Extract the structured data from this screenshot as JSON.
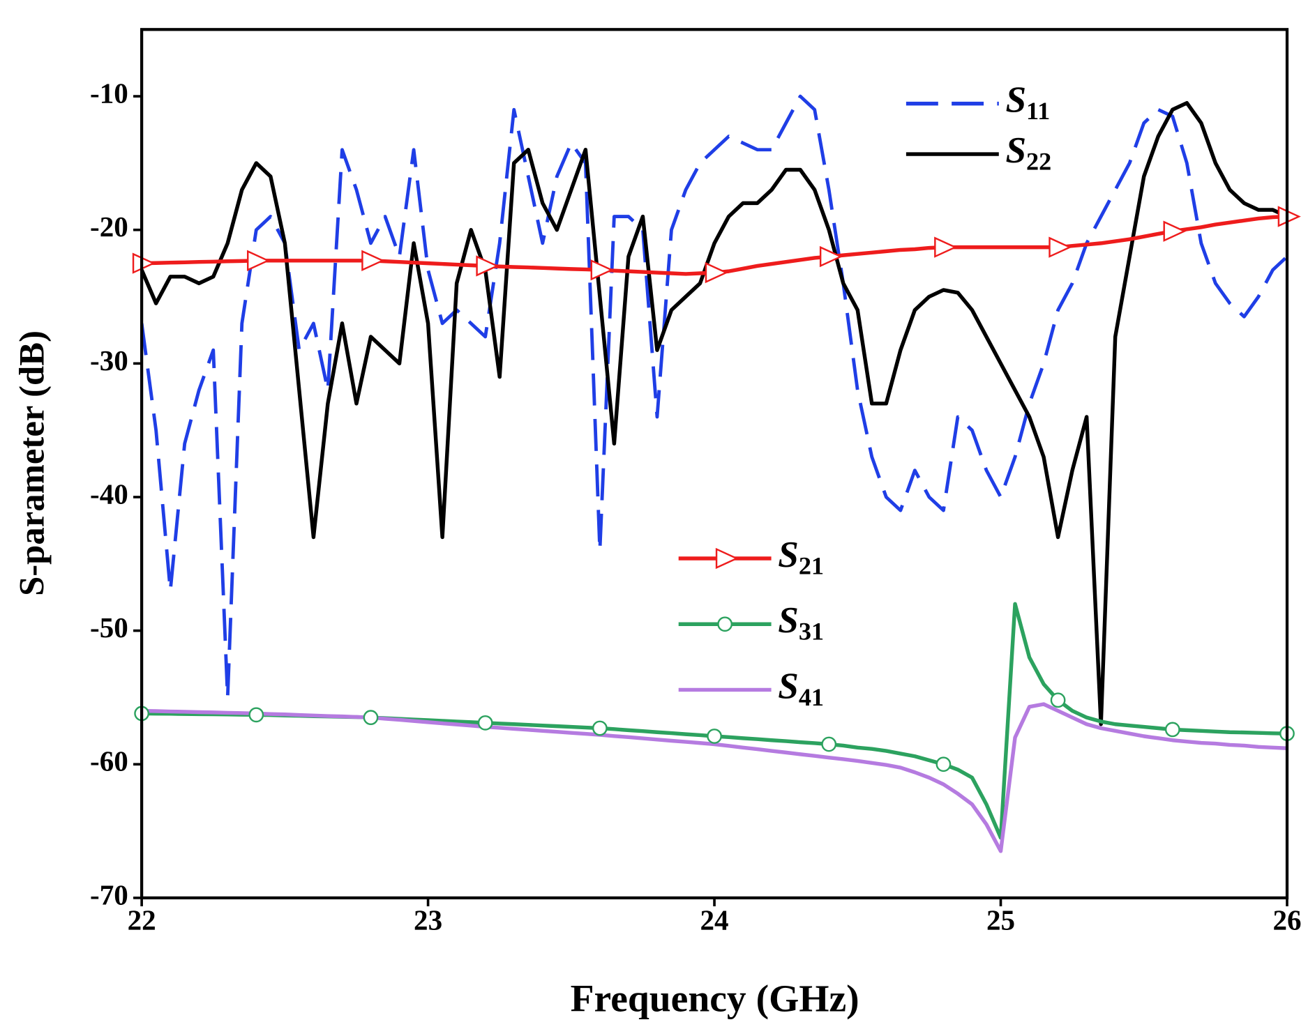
{
  "chart_data": {
    "type": "line",
    "xlabel": "Frequency (GHz)",
    "ylabel": "S-parameter (dB)",
    "xlim": [
      22,
      26
    ],
    "xticks": [
      22,
      23,
      24,
      25,
      26
    ],
    "ylim": [
      -70,
      -5
    ],
    "yticks": [
      -70,
      -60,
      -50,
      -40,
      -30,
      -20,
      -10
    ],
    "x": [
      22,
      22.05,
      22.1,
      22.15,
      22.2,
      22.25,
      22.3,
      22.35,
      22.4,
      22.45,
      22.5,
      22.55,
      22.6,
      22.65,
      22.7,
      22.75,
      22.8,
      22.85,
      22.9,
      22.95,
      23,
      23.05,
      23.1,
      23.15,
      23.2,
      23.25,
      23.3,
      23.35,
      23.4,
      23.45,
      23.5,
      23.55,
      23.6,
      23.65,
      23.7,
      23.75,
      23.8,
      23.85,
      23.9,
      23.95,
      24,
      24.05,
      24.1,
      24.15,
      24.2,
      24.25,
      24.3,
      24.35,
      24.4,
      24.45,
      24.5,
      24.55,
      24.6,
      24.65,
      24.7,
      24.75,
      24.8,
      24.85,
      24.9,
      24.95,
      25,
      25.05,
      25.1,
      25.15,
      25.2,
      25.25,
      25.3,
      25.35,
      25.4,
      25.45,
      25.5,
      25.55,
      25.6,
      25.65,
      25.7,
      25.75,
      25.8,
      25.85,
      25.9,
      25.95,
      26
    ],
    "series": [
      {
        "name": "S11",
        "color": "#1f3ee6",
        "linestyle": "dashed",
        "values": [
          -27,
          -35,
          -47,
          -36,
          -32,
          -29,
          -55,
          -27,
          -20,
          -19,
          -21,
          -29,
          -27,
          -32,
          -14,
          -17,
          -21,
          -19,
          -22,
          -14,
          -23,
          -27,
          -26,
          -27,
          -28,
          -21,
          -11,
          -16,
          -21,
          -16,
          -13.5,
          -15,
          -44,
          -19,
          -19,
          -20,
          -34,
          -20,
          -17,
          -15,
          -14,
          -13,
          -13.5,
          -14,
          -14,
          -12,
          -10,
          -11,
          -17,
          -24,
          -32,
          -37,
          -40,
          -41,
          -38,
          -40,
          -41,
          -34,
          -35,
          -38,
          -40,
          -37,
          -33,
          -30,
          -26,
          -24,
          -21,
          -19,
          -17,
          -15,
          -12,
          -11,
          -11.5,
          -15,
          -21,
          -24,
          -25.5,
          -26.5,
          -25,
          -23,
          -22
        ]
      },
      {
        "name": "S22",
        "color": "#000000",
        "linestyle": "solid",
        "values": [
          -23,
          -25.5,
          -23.5,
          -23.5,
          -24,
          -23.5,
          -21,
          -17,
          -15,
          -16,
          -21,
          -32,
          -43,
          -33,
          -27,
          -33,
          -28,
          -29,
          -30,
          -21,
          -27,
          -43,
          -24,
          -20,
          -23,
          -31,
          -15,
          -14,
          -18,
          -20,
          -17,
          -14,
          -25,
          -36,
          -22,
          -19,
          -29,
          -26,
          -25,
          -24,
          -21,
          -19,
          -18,
          -18,
          -17,
          -15.5,
          -15.5,
          -17,
          -20,
          -24,
          -26,
          -33,
          -33,
          -29,
          -26,
          -25,
          -24.5,
          -24.7,
          -26,
          -28,
          -30,
          -32,
          -34,
          -37,
          -43,
          -38,
          -34,
          -57,
          -28,
          -22,
          -16,
          -13,
          -11,
          -10.5,
          -12,
          -15,
          -17,
          -18,
          -18.5,
          -18.5,
          -19
        ]
      },
      {
        "name": "S21",
        "color": "#ee1c1c",
        "linestyle": "solid",
        "marker": "triangle",
        "values": [
          -22.5,
          -22.48,
          -22.45,
          -22.43,
          -22.4,
          -22.38,
          -22.35,
          -22.33,
          -22.3,
          -22.3,
          -22.3,
          -22.3,
          -22.3,
          -22.3,
          -22.3,
          -22.3,
          -22.3,
          -22.35,
          -22.4,
          -22.45,
          -22.5,
          -22.55,
          -22.6,
          -22.65,
          -22.7,
          -22.74,
          -22.78,
          -22.81,
          -22.85,
          -22.89,
          -22.93,
          -22.96,
          -23.0,
          -23.05,
          -23.1,
          -23.15,
          -23.2,
          -23.25,
          -23.3,
          -23.25,
          -23.2,
          -23.1,
          -22.9,
          -22.7,
          -22.55,
          -22.4,
          -22.25,
          -22.1,
          -22.0,
          -21.9,
          -21.8,
          -21.7,
          -21.6,
          -21.5,
          -21.45,
          -21.35,
          -21.3,
          -21.3,
          -21.3,
          -21.3,
          -21.3,
          -21.3,
          -21.3,
          -21.3,
          -21.3,
          -21.2,
          -21.1,
          -21.0,
          -20.85,
          -20.7,
          -20.5,
          -20.3,
          -20.1,
          -19.95,
          -19.8,
          -19.6,
          -19.45,
          -19.3,
          -19.15,
          -19.05,
          -19.0
        ]
      },
      {
        "name": "S31",
        "color": "#2ca25f",
        "linestyle": "solid",
        "marker": "circle",
        "values": [
          -56.2,
          -56.21,
          -56.22,
          -56.24,
          -56.25,
          -56.26,
          -56.27,
          -56.29,
          -56.3,
          -56.32,
          -56.35,
          -56.37,
          -56.4,
          -56.42,
          -56.45,
          -56.47,
          -56.5,
          -56.55,
          -56.6,
          -56.65,
          -56.7,
          -56.75,
          -56.8,
          -56.85,
          -56.9,
          -56.95,
          -57.0,
          -57.05,
          -57.1,
          -57.15,
          -57.2,
          -57.25,
          -57.3,
          -57.37,
          -57.45,
          -57.52,
          -57.6,
          -57.67,
          -57.75,
          -57.82,
          -57.9,
          -57.97,
          -58.05,
          -58.12,
          -58.2,
          -58.27,
          -58.35,
          -58.42,
          -58.5,
          -58.6,
          -58.75,
          -58.85,
          -59.0,
          -59.2,
          -59.4,
          -59.7,
          -60.0,
          -60.4,
          -61.0,
          -63.0,
          -65.5,
          -48.0,
          -52.0,
          -54.0,
          -55.2,
          -56.0,
          -56.5,
          -56.8,
          -57.0,
          -57.1,
          -57.2,
          -57.3,
          -57.4,
          -57.45,
          -57.5,
          -57.55,
          -57.6,
          -57.62,
          -57.65,
          -57.68,
          -57.7
        ]
      },
      {
        "name": "S41",
        "color": "#b57be0",
        "linestyle": "solid",
        "values": [
          -56.0,
          -56.02,
          -56.05,
          -56.07,
          -56.1,
          -56.12,
          -56.15,
          -56.17,
          -56.2,
          -56.24,
          -56.27,
          -56.31,
          -56.35,
          -56.39,
          -56.42,
          -56.46,
          -56.5,
          -56.59,
          -56.67,
          -56.76,
          -56.85,
          -56.94,
          -57.02,
          -57.11,
          -57.2,
          -57.27,
          -57.35,
          -57.42,
          -57.5,
          -57.57,
          -57.65,
          -57.72,
          -57.8,
          -57.89,
          -57.97,
          -58.06,
          -58.15,
          -58.24,
          -58.32,
          -58.41,
          -58.5,
          -58.62,
          -58.75,
          -58.87,
          -59.0,
          -59.12,
          -59.25,
          -59.37,
          -59.5,
          -59.62,
          -59.75,
          -59.9,
          -60.05,
          -60.25,
          -60.6,
          -61.0,
          -61.5,
          -62.2,
          -63.0,
          -64.5,
          -66.5,
          -58.0,
          -55.7,
          -55.5,
          -56.0,
          -56.5,
          -57.0,
          -57.3,
          -57.5,
          -57.7,
          -57.9,
          -58.05,
          -58.2,
          -58.3,
          -58.4,
          -58.45,
          -58.55,
          -58.6,
          -58.7,
          -58.75,
          -58.8
        ]
      }
    ]
  }
}
